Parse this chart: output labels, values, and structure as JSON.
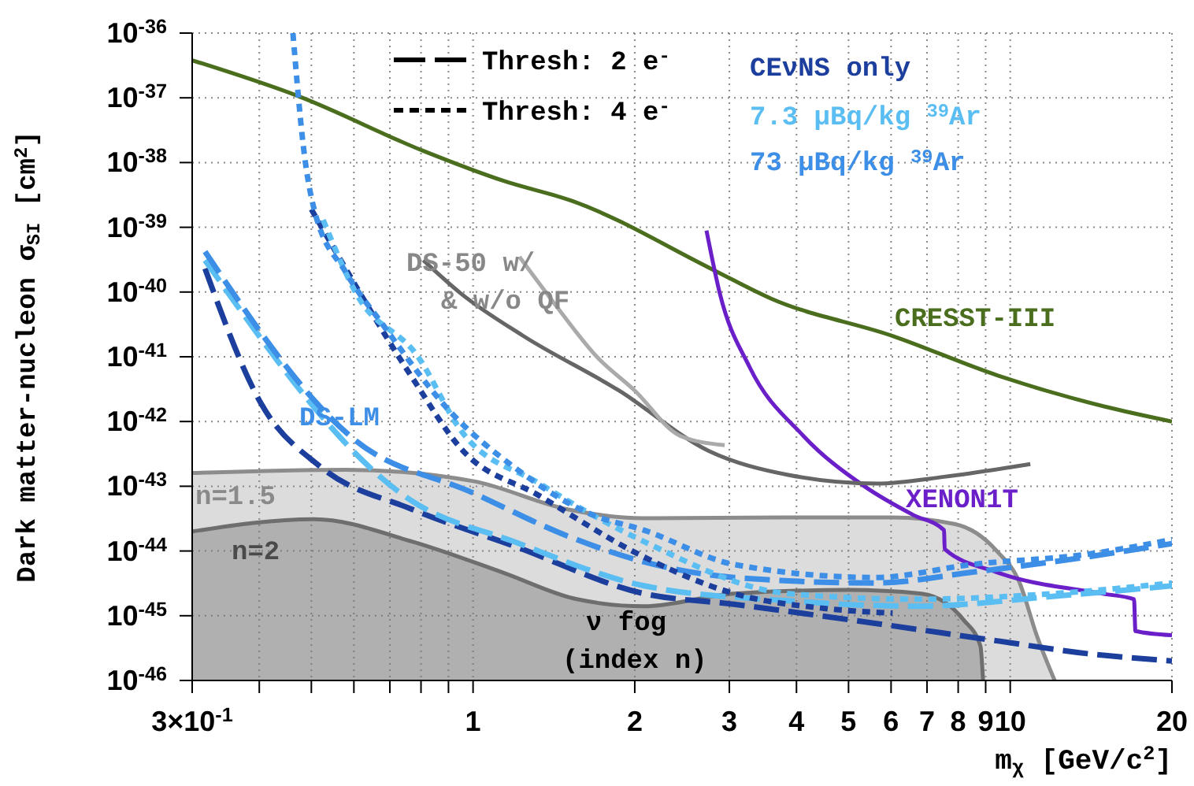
{
  "chart_data": {
    "type": "line",
    "xlabel": "m$_{χ}$ [GeV/c$^{2}$]",
    "ylabel": "Dark matter-nucleon σ$_{SI}$ [cm$^{2}$]",
    "log": "xy",
    "grid": true,
    "xlim": [
      0.3,
      20
    ],
    "xticks": [
      {
        "value": 0.3,
        "label": "3×10$^{-1}$"
      },
      {
        "value": 0.4,
        "label": null
      },
      {
        "value": 0.5,
        "label": null
      },
      {
        "value": 0.6,
        "label": null
      },
      {
        "value": 0.7,
        "label": null
      },
      {
        "value": 0.8,
        "label": null
      },
      {
        "value": 0.9,
        "label": null
      },
      1,
      2,
      3,
      4,
      5,
      6,
      7,
      8,
      9,
      10,
      20
    ],
    "ylim": [
      1e-46,
      1e-36
    ],
    "yticks": [
      {
        "value": 1e-46,
        "label": "10$^{-46}$"
      },
      {
        "value": 1e-45,
        "label": "10$^{-45}$"
      },
      {
        "value": 1e-44,
        "label": "10$^{-44}$"
      },
      {
        "value": 1e-43,
        "label": "10$^{-43}$"
      },
      {
        "value": 1e-42,
        "label": "10$^{-42}$"
      },
      {
        "value": 1e-41,
        "label": "10$^{-41}$"
      },
      {
        "value": 1e-40,
        "label": "10$^{-40}$"
      },
      {
        "value": 1e-39,
        "label": "10$^{-39}$"
      },
      {
        "value": 1e-38,
        "label": "10$^{-38}$"
      },
      {
        "value": 1e-37,
        "label": "10$^{-37}$"
      },
      {
        "value": 1e-36,
        "label": "10$^{-36}$"
      }
    ],
    "annotations": [
      "Thresh: 2 e$^{-}$",
      "Thresh: 4 e$^{-}$",
      "CEνNS only",
      "7.3 μBq/kg $^{39}$Ar",
      "73 μBq/kg $^{39}$Ar",
      "DS-50 w/ & w/o QF",
      "DS-LM",
      "ν fog (index n)"
    ],
    "series": [
      {
        "name": "n=1.5",
        "type": "area",
        "color": "#8c8c8c",
        "x": [
          0.3,
          0.58,
          1.0,
          1.5,
          2.08,
          3.86,
          6.04,
          7.9,
          9.44,
          10.4,
          11.2,
          12.1
        ],
        "values": [
          1.6e-43,
          1.8e-43,
          1.2e-43,
          4.4e-44,
          3.2e-44,
          3.3e-44,
          3.3e-44,
          2.6e-44,
          1e-44,
          3.3e-45,
          5e-46,
          1e-46
        ]
      },
      {
        "name": "n=2",
        "type": "area",
        "color": "#6e6e6e",
        "x": [
          0.3,
          0.506,
          0.77,
          1.14,
          1.56,
          2.08,
          3.06,
          4.99,
          6.83,
          8.2,
          8.8,
          8.9
        ],
        "values": [
          2e-44,
          3.1e-44,
          1.4e-44,
          4.6e-45,
          1.8e-45,
          1.4e-45,
          2.2e-45,
          2.5e-45,
          2.2e-45,
          8.5e-46,
          3.4e-46,
          1e-46
        ]
      },
      {
        "name": "CRESST-III",
        "color": "#4a6e1e",
        "line_style": "solid",
        "x": [
          0.3,
          0.473,
          0.81,
          1.14,
          1.54,
          2.8,
          3.59,
          6.04,
          9.44,
          15,
          20
        ],
        "values": [
          3.8e-37,
          1.06e-37,
          1.5e-38,
          5.2e-39,
          2.5e-39,
          2.2e-40,
          7.9e-41,
          2.1e-41,
          5.2e-42,
          1.7e-42,
          1e-42
        ]
      },
      {
        "name": "XENON1T",
        "color": "#6a1fc9",
        "line_style": "solid",
        "x": [
          2.72,
          2.88,
          3.27,
          4.12,
          5.35,
          6.6,
          7.53,
          7.55,
          9.44,
          14.8,
          17.0,
          17.1,
          20
        ],
        "values": [
          8.9e-40,
          9.5e-41,
          7e-42,
          6e-43,
          1e-43,
          3.6e-44,
          2.1e-44,
          1.07e-44,
          4.7e-45,
          2.2e-45,
          1.8e-45,
          5.8e-46,
          5e-46
        ]
      },
      {
        "color": "#666666",
        "line_style": "solid",
        "x": [
          0.808,
          0.949,
          1.24,
          1.87,
          2.75,
          3.86,
          5.65,
          7.53,
          10.9
        ],
        "values": [
          3.1e-40,
          9.5e-41,
          2.1e-41,
          3e-42,
          3.5e-43,
          1.5e-43,
          1.1e-43,
          1.4e-43,
          2.2e-43
        ]
      },
      {
        "color": "#aaaaaa",
        "line_style": "solid",
        "x": [
          1.22,
          1.42,
          1.7,
          2.0,
          2.43,
          2.94
        ],
        "values": [
          3.5e-40,
          6.5e-41,
          1e-41,
          3e-42,
          6e-43,
          4.3e-43
        ]
      },
      {
        "color": "#1c3f9e",
        "line_style": "dashed",
        "x": [
          0.317,
          0.403,
          0.52,
          0.77,
          1.19,
          2.08,
          3.06,
          5.0,
          9.44,
          13.9,
          20
        ],
        "values": [
          2.3e-40,
          1.9e-42,
          2e-43,
          4.4e-44,
          1.2e-44,
          2.2e-45,
          1.5e-45,
          8.7e-46,
          4.1e-46,
          2.6e-46,
          2e-46
        ]
      },
      {
        "color": "#5bbef2",
        "line_style": "dashed",
        "x": [
          0.317,
          0.77,
          1.19,
          2.08,
          3.86,
          6.7,
          12.1,
          20
        ],
        "values": [
          3.1e-40,
          5.9e-44,
          1.4e-44,
          2.9e-45,
          1.7e-45,
          1.4e-45,
          2e-45,
          2.9e-45
        ]
      },
      {
        "color": "#3c8ee6",
        "line_style": "dashed",
        "x": [
          0.317,
          0.606,
          1.0,
          1.5,
          2.08,
          3.06,
          5.6,
          8.5,
          13.9,
          20
        ],
        "values": [
          4.2e-40,
          5e-43,
          7.9e-44,
          1.7e-44,
          6.8e-45,
          3.9e-45,
          3.2e-45,
          4.7e-45,
          8.1e-45,
          1.3e-44
        ]
      },
      {
        "color": "#1c3f9e",
        "line_style": "dotted",
        "x": [
          0.5,
          0.77,
          0.95,
          1.33,
          2.08,
          3.06,
          4.5,
          6.04
        ],
        "values": [
          1.9e-39,
          4.8e-42,
          3.8e-43,
          7.1e-44,
          8.1e-45,
          2.2e-45,
          1.3e-45,
          1.1e-45
        ]
      },
      {
        "color": "#5bbef2",
        "line_style": "dotted",
        "x": [
          0.526,
          0.606,
          0.79,
          0.95,
          1.33,
          2.08,
          3.86,
          6.7,
          12.1,
          20
        ],
        "values": [
          1.3e-39,
          9.5e-41,
          1e-41,
          7.2e-43,
          1.1e-43,
          1.4e-44,
          2.2e-45,
          1.8e-45,
          2.2e-45,
          3.2e-45
        ]
      },
      {
        "color": "#3c8ee6",
        "line_style": "dotted",
        "x": [
          0.462,
          0.486,
          0.506,
          0.58,
          0.68,
          0.908,
          1.19,
          1.67,
          2.08,
          3.06,
          5.6,
          8.5,
          13.9,
          20
        ],
        "values": [
          1e-36,
          1.2e-38,
          1.9e-39,
          2e-40,
          3.1e-41,
          1.4e-42,
          2e-43,
          3.6e-44,
          2.1e-44,
          6.2e-45,
          3.9e-45,
          6.2e-45,
          8.9e-45,
          1.5e-44
        ]
      }
    ]
  }
}
